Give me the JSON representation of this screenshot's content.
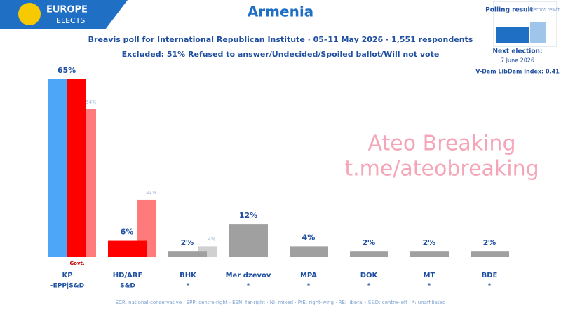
{
  "chart_data": {
    "type": "bar",
    "logo": [
      "EUROPE",
      "ELECTS"
    ],
    "title": "Armenia",
    "subtitle": "Breavis poll for International Republican Institute · 05–11 May 2026 · 1,551 respondents",
    "excluded": "Excluded: 51% Refused to answer/Undecided/Spoiled ballot/Will not vote",
    "categories": [
      "KP",
      "HD/ARF",
      "BHK",
      "Mer dzevov",
      "MPA",
      "DOK",
      "MT",
      "BDE"
    ],
    "groups": [
      "-EPP|S&D",
      "S&D",
      "*",
      "*",
      "*",
      "*",
      "*",
      "*"
    ],
    "series": [
      {
        "name": "Polling result",
        "color": "#1f6fc5",
        "colors": [
          [
            "#4da6f7",
            "#ff0000"
          ],
          "#ff0000",
          "#a0a0a0",
          "#a0a0a0",
          "#a0a0a0",
          "#a0a0a0",
          "#a0a0a0",
          "#a0a0a0"
        ],
        "values": [
          65,
          6,
          2,
          12,
          4,
          2,
          2,
          2
        ],
        "value_labels": [
          "65%",
          "6%",
          "2%",
          "12%",
          "4%",
          "2%",
          "2%",
          "2%"
        ]
      },
      {
        "name": "2021 election result",
        "color": "#9fc5ea",
        "colors": [
          "#ff7a7a",
          "#ff7a7a",
          "#d0d0d0",
          null,
          null,
          null,
          null,
          null
        ],
        "values": [
          54,
          21,
          4,
          null,
          null,
          null,
          null,
          null
        ],
        "value_labels": [
          "54%",
          "21%",
          "4%",
          null,
          null,
          null,
          null,
          null
        ]
      }
    ],
    "annotations": [
      "Govt."
    ],
    "next_election": [
      "Next election:",
      "7 June 2026"
    ],
    "vdem": "V-Dem LibDem Index: 0.41",
    "watermark": [
      "Ateo Breaking",
      "t.me/ateobreaking"
    ],
    "footer": "ECR: national-conservative · EPP: centre-right · ESN: far-right · NI: mixed · PfE: right-wing · RE: liberal · S&D: centre-left · *: unaffiliated"
  }
}
